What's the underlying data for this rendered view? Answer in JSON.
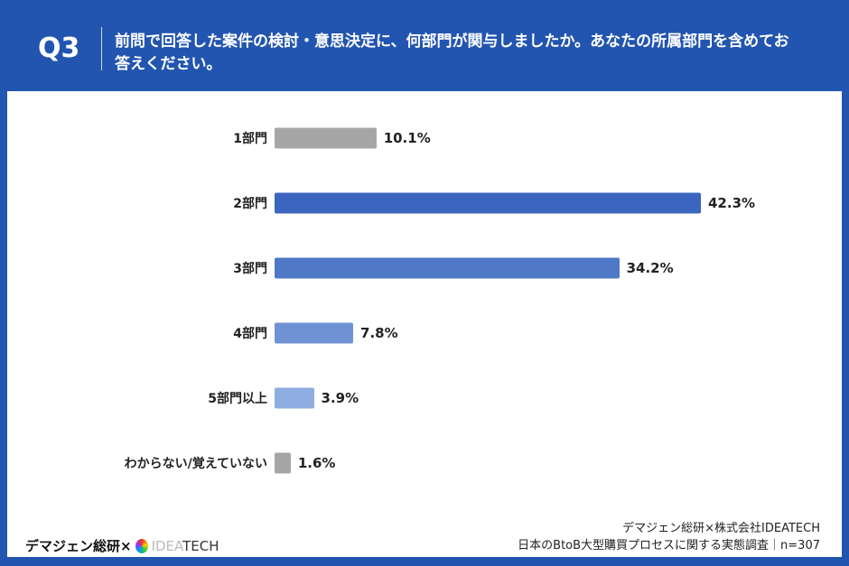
{
  "header": {
    "q": "Q3",
    "question": "前問で回答した案件の検討・意思決定に、何部門が関与しましたか。あなたの所属部門を含めてお答えください。"
  },
  "chart_data": {
    "type": "bar",
    "orientation": "horizontal",
    "categories": [
      "1部門",
      "2部門",
      "3部門",
      "4部門",
      "5部門以上",
      "わからない/覚えていない"
    ],
    "values": [
      10.1,
      42.3,
      34.2,
      7.8,
      3.9,
      1.6
    ],
    "value_labels": [
      "10.1%",
      "42.3%",
      "34.2%",
      "7.8%",
      "3.9%",
      "1.6%"
    ],
    "colors": [
      "#a6a6a6",
      "#3b65bf",
      "#4f79c7",
      "#6e92d4",
      "#8eaee1",
      "#a6a6a6"
    ],
    "xlim": [
      0,
      42.3
    ]
  },
  "footer": {
    "logo_left": "デマジェン総研×",
    "logo_idea": "IDEA",
    "logo_tech": "TECH",
    "source1": "デマジェン総研×株式会社IDEATECH",
    "source2": "日本のBtoB大型購買プロセスに関する実態調査｜n=307"
  }
}
